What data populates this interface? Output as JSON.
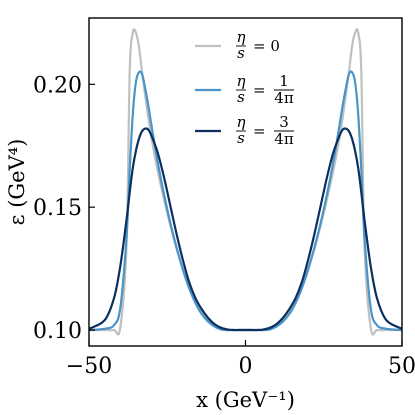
{
  "chart_data": {
    "type": "line",
    "title": "",
    "xlabel": "x (GeV⁻¹)",
    "ylabel": "ε (GeV⁴)",
    "xlim": [
      -50,
      50
    ],
    "ylim": [
      0.0935,
      0.227
    ],
    "xticks": [
      -50,
      0,
      50
    ],
    "xtick_labels": [
      "−50",
      "0",
      "50"
    ],
    "yticks": [
      0.1,
      0.15,
      0.2
    ],
    "ytick_labels": [
      "0.10",
      "0.15",
      "0.20"
    ],
    "grid": false,
    "legend_position": "top-center",
    "x": [
      -50,
      -45,
      -42,
      -40,
      -38,
      -37,
      -36,
      -35,
      -34,
      -33,
      -32,
      -31,
      -30,
      -28,
      -26,
      -24,
      -22,
      -20,
      -18,
      -16,
      -14,
      -12,
      -10,
      -8,
      -6,
      -4,
      -2,
      0,
      2,
      4,
      6,
      8,
      10,
      12,
      14,
      16,
      18,
      20,
      22,
      24,
      26,
      28,
      30,
      31,
      32,
      33,
      34,
      35,
      36,
      37,
      38,
      40,
      42,
      45,
      50
    ],
    "series": [
      {
        "name": "η/s = 0",
        "color": "#c0c0c0",
        "values": [
          0.1,
          0.1,
          0.1,
          0.101,
          0.135,
          0.205,
          0.221,
          0.221,
          0.215,
          0.2045,
          0.195,
          0.186,
          0.178,
          0.1645,
          0.153,
          0.1425,
          0.133,
          0.125,
          0.118,
          0.1125,
          0.108,
          0.1045,
          0.102,
          0.1005,
          0.1,
          0.1,
          0.1,
          0.1,
          0.1,
          0.1,
          0.1,
          0.1005,
          0.102,
          0.1045,
          0.108,
          0.1125,
          0.118,
          0.125,
          0.133,
          0.1425,
          0.153,
          0.1645,
          0.178,
          0.186,
          0.195,
          0.2045,
          0.215,
          0.221,
          0.221,
          0.205,
          0.135,
          0.101,
          0.1,
          0.1,
          0.1
        ]
      },
      {
        "name": "η/s = 1/4π",
        "color": "#4a95c8",
        "values": [
          0.1,
          0.1005,
          0.102,
          0.109,
          0.138,
          0.165,
          0.188,
          0.201,
          0.205,
          0.204,
          0.198,
          0.191,
          0.183,
          0.168,
          0.155,
          0.1435,
          0.1335,
          0.1245,
          0.117,
          0.111,
          0.1065,
          0.1035,
          0.1015,
          0.1003,
          0.1,
          0.1,
          0.1,
          0.1,
          0.1,
          0.1,
          0.1,
          0.1003,
          0.1015,
          0.1035,
          0.1065,
          0.111,
          0.117,
          0.1245,
          0.1335,
          0.1435,
          0.155,
          0.168,
          0.183,
          0.191,
          0.198,
          0.204,
          0.205,
          0.201,
          0.188,
          0.165,
          0.138,
          0.109,
          0.102,
          0.1005,
          0.1
        ]
      },
      {
        "name": "η/s = 3/4π",
        "color": "#0b2f5e",
        "values": [
          0.1005,
          0.104,
          0.113,
          0.126,
          0.145,
          0.156,
          0.166,
          0.173,
          0.178,
          0.181,
          0.182,
          0.1815,
          0.179,
          0.172,
          0.162,
          0.1505,
          0.139,
          0.1285,
          0.1195,
          0.113,
          0.1085,
          0.105,
          0.1025,
          0.101,
          0.1003,
          0.1,
          0.1,
          0.1,
          0.1,
          0.1,
          0.1003,
          0.101,
          0.1025,
          0.105,
          0.1085,
          0.113,
          0.1195,
          0.1285,
          0.139,
          0.1505,
          0.162,
          0.172,
          0.179,
          0.1815,
          0.182,
          0.181,
          0.178,
          0.173,
          0.166,
          0.156,
          0.145,
          0.126,
          0.113,
          0.104,
          0.1005
        ]
      }
    ],
    "legend": [
      {
        "eta": "η",
        "s": "s",
        "value_num": "",
        "value_den": "",
        "value_plain": "= 0"
      },
      {
        "eta": "η",
        "s": "s",
        "value_num": "1",
        "value_den": "4π",
        "value_plain": "="
      },
      {
        "eta": "η",
        "s": "s",
        "value_num": "3",
        "value_den": "4π",
        "value_plain": "="
      }
    ]
  }
}
